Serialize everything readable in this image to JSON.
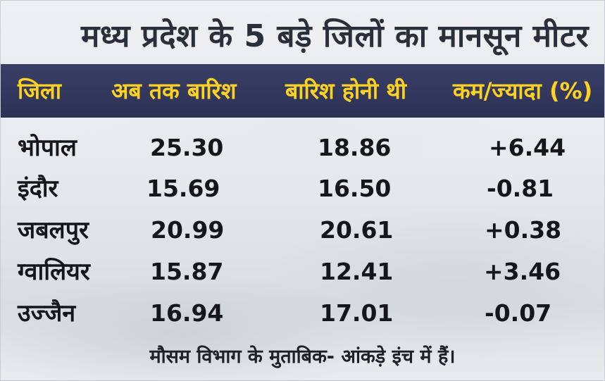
{
  "chart_data": {
    "type": "table",
    "title": "मध्य प्रदेश के 5 बड़े जिलों का मानसून मीटर",
    "columns": [
      "जिला",
      "अब तक बारिश",
      "बारिश होनी थी",
      "कम/ज्यादा (%)"
    ],
    "rows": [
      [
        "भोपाल",
        "25.30",
        "18.86",
        "+6.44"
      ],
      [
        "इंदौर",
        "15.69",
        "16.50",
        "-0.81"
      ],
      [
        "जबलपुर",
        "20.99",
        "20.61",
        "+0.38"
      ],
      [
        "ग्वालियर",
        "15.87",
        "12.41",
        "+3.46"
      ],
      [
        "उज्जैन",
        "16.94",
        "17.01",
        "-0.07"
      ]
    ],
    "note": "मौसम विभाग के मुताबिक- आंकड़े इंच में हैं।"
  },
  "colors": {
    "header_band": "#2f3459",
    "header_text": "#ffd21f",
    "title_text": "#2a2f3a",
    "body_text": "#14161c"
  }
}
